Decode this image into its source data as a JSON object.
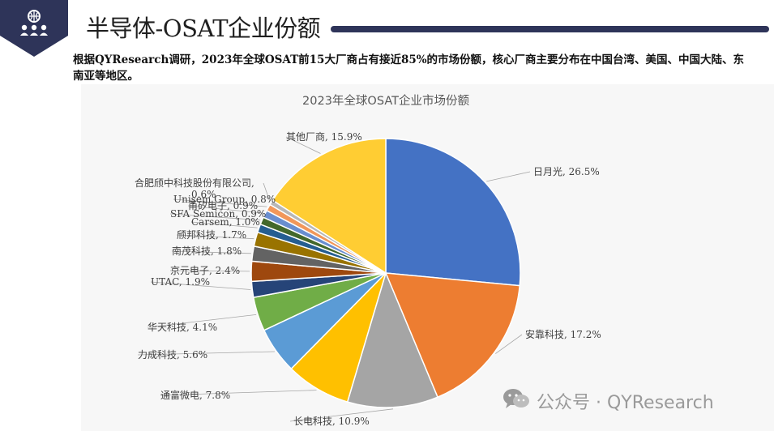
{
  "header": {
    "title": "半导体-OSAT企业份额",
    "badge_icon": "people-network-icon",
    "accent_color": "#2e3459"
  },
  "intro_text": "根据QYResearch调研，2023年全球OSAT前15大厂商占有接近85%的市场份额，核心厂商主要分布在中国台湾、美国、中国大陆、东南亚等地区。",
  "watermark": {
    "text": "公众号 · QYResearch",
    "icon": "wechat-icon"
  },
  "chart_data": {
    "type": "pie",
    "title": "2023年全球OSAT企业市场份额",
    "legend": "none",
    "slices": [
      {
        "label": "日月光",
        "value": 26.5,
        "display": "日月光, 26.5%",
        "color": "#4472c4"
      },
      {
        "label": "安靠科技",
        "value": 17.2,
        "display": "安靠科技, 17.2%",
        "color": "#ed7d31"
      },
      {
        "label": "长电科技",
        "value": 10.9,
        "display": "长电科技, 10.9%",
        "color": "#a5a5a5"
      },
      {
        "label": "通富微电",
        "value": 7.8,
        "display": "通富微电, 7.8%",
        "color": "#ffc000"
      },
      {
        "label": "力成科技",
        "value": 5.6,
        "display": "力成科技, 5.6%",
        "color": "#5b9bd5"
      },
      {
        "label": "华天科技",
        "value": 4.1,
        "display": "华天科技, 4.1%",
        "color": "#70ad47"
      },
      {
        "label": "UTAC",
        "value": 1.9,
        "display": "UTAC, 1.9%",
        "color": "#264478"
      },
      {
        "label": "京元电子",
        "value": 2.4,
        "display": "京元电子, 2.4%",
        "color": "#9e480e"
      },
      {
        "label": "南茂科技",
        "value": 1.8,
        "display": "南茂科技, 1.8%",
        "color": "#636363"
      },
      {
        "label": "颀邦科技",
        "value": 1.7,
        "display": "颀邦科技, 1.7%",
        "color": "#997300"
      },
      {
        "label": "Carsem",
        "value": 1.0,
        "display": "Carsem, 1.0%",
        "color": "#255e91"
      },
      {
        "label": "SFA Semicon",
        "value": 0.9,
        "display": "SFA Semicon, 0.9%",
        "color": "#43682b"
      },
      {
        "label": "甬矽电子",
        "value": 0.9,
        "display": "甬矽电子, 0.9%",
        "color": "#698ed0"
      },
      {
        "label": "Unisem Group",
        "value": 0.8,
        "display": "Unisem Group, 0.8%",
        "color": "#f1975a"
      },
      {
        "label": "合肥颀中科技股份有限公司",
        "value": 0.6,
        "display": "合肥颀中科技股份有限公司, 0.6%",
        "color": "#b7b7b7"
      },
      {
        "label": "其他厂商",
        "value": 15.9,
        "display": "其他厂商, 15.9%",
        "color": "#ffcd33"
      }
    ]
  }
}
